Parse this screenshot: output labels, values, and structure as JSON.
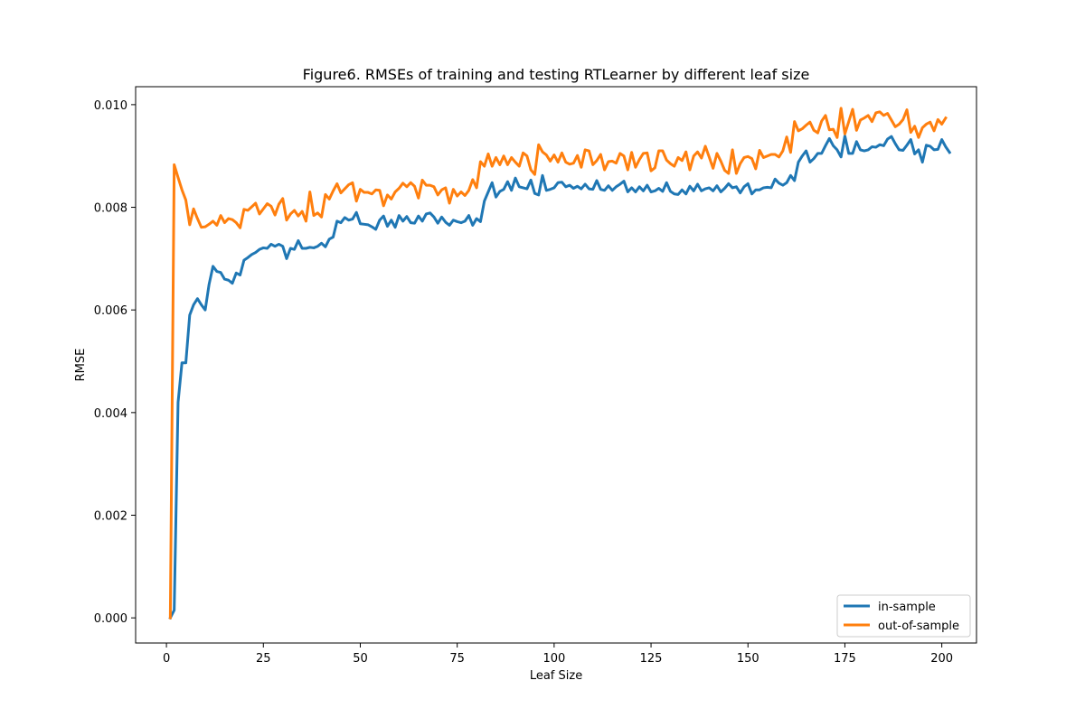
{
  "chart_data": {
    "type": "line",
    "title": "Figure6. RMSEs of training and testing RTLearner by different leaf size",
    "xlabel": "Leaf Size",
    "ylabel": "RMSE",
    "xlim": [
      -7.95,
      208.95
    ],
    "ylim": [
      -0.00049,
      0.01035
    ],
    "xticks": [
      0,
      25,
      50,
      75,
      100,
      125,
      150,
      175,
      200
    ],
    "xtick_labels": [
      "0",
      "25",
      "50",
      "75",
      "100",
      "125",
      "150",
      "175",
      "200"
    ],
    "yticks": [
      0.0,
      0.002,
      0.004,
      0.006,
      0.008,
      0.01
    ],
    "ytick_labels": [
      "0.000",
      "0.002",
      "0.004",
      "0.006",
      "0.008",
      "0.010"
    ],
    "grid": false,
    "legend_position": "lower-right",
    "series": [
      {
        "name": "in-sample",
        "color": "#1f77b4",
        "x_start": 1,
        "x_step": 1,
        "values": [
          0.0,
          0.00015,
          0.0042,
          0.00497,
          0.00497,
          0.0059,
          0.0061,
          0.00622,
          0.0061,
          0.006,
          0.0065,
          0.00685,
          0.00675,
          0.00673,
          0.0066,
          0.00658,
          0.00652,
          0.00672,
          0.00668,
          0.00697,
          0.00702,
          0.00708,
          0.00712,
          0.00718,
          0.00721,
          0.0072,
          0.00728,
          0.00724,
          0.00728,
          0.00724,
          0.007,
          0.0072,
          0.00718,
          0.00735,
          0.0072,
          0.0072,
          0.00722,
          0.00721,
          0.00724,
          0.0073,
          0.00723,
          0.00738,
          0.00742,
          0.00773,
          0.0077,
          0.0078,
          0.00775,
          0.00777,
          0.0079,
          0.00768,
          0.00767,
          0.00766,
          0.00762,
          0.00757,
          0.00775,
          0.00783,
          0.00763,
          0.00775,
          0.00761,
          0.00784,
          0.00773,
          0.00782,
          0.0077,
          0.00769,
          0.00783,
          0.00773,
          0.00787,
          0.00789,
          0.00781,
          0.00769,
          0.00781,
          0.00771,
          0.00765,
          0.00775,
          0.00772,
          0.0077,
          0.00773,
          0.00784,
          0.00765,
          0.00778,
          0.00772,
          0.00812,
          0.0083,
          0.00848,
          0.0082,
          0.00831,
          0.00835,
          0.0085,
          0.00833,
          0.00857,
          0.0084,
          0.00838,
          0.00836,
          0.00853,
          0.00827,
          0.00824,
          0.00862,
          0.00833,
          0.00835,
          0.00838,
          0.00848,
          0.00849,
          0.0084,
          0.00843,
          0.00837,
          0.00841,
          0.00836,
          0.00845,
          0.00836,
          0.00835,
          0.00852,
          0.00835,
          0.00833,
          0.00842,
          0.00833,
          0.0084,
          0.00845,
          0.00851,
          0.0083,
          0.00838,
          0.0083,
          0.0084,
          0.00832,
          0.00843,
          0.0083,
          0.00832,
          0.00837,
          0.00831,
          0.00848,
          0.00831,
          0.00826,
          0.00825,
          0.00834,
          0.00826,
          0.00841,
          0.00832,
          0.00845,
          0.00832,
          0.00836,
          0.00838,
          0.00832,
          0.00842,
          0.0083,
          0.00837,
          0.00846,
          0.00838,
          0.0084,
          0.00828,
          0.0084,
          0.00846,
          0.00826,
          0.00834,
          0.00834,
          0.00838,
          0.00839,
          0.00838,
          0.00855,
          0.00847,
          0.00843,
          0.00848,
          0.00862,
          0.00852,
          0.00888,
          0.009,
          0.0091,
          0.00888,
          0.00895,
          0.00905,
          0.00905,
          0.0092,
          0.00934,
          0.0092,
          0.00912,
          0.00898,
          0.00939,
          0.00905,
          0.00905,
          0.00928,
          0.00912,
          0.0091,
          0.00912,
          0.00918,
          0.00917,
          0.00922,
          0.0092,
          0.00933,
          0.00938,
          0.00924,
          0.00912,
          0.00911,
          0.00921,
          0.00932,
          0.00904,
          0.00912,
          0.00888,
          0.00921,
          0.00919,
          0.00912,
          0.00913,
          0.00932,
          0.00918,
          0.00907
        ]
      },
      {
        "name": "out-of-sample",
        "color": "#ff7f0e",
        "x_start": 1,
        "x_step": 1,
        "values": [
          0.0,
          0.00883,
          0.00858,
          0.00834,
          0.00814,
          0.00766,
          0.00797,
          0.00778,
          0.00761,
          0.00762,
          0.00767,
          0.00773,
          0.00765,
          0.00784,
          0.0077,
          0.00778,
          0.00776,
          0.0077,
          0.0076,
          0.00796,
          0.00794,
          0.00801,
          0.00808,
          0.00787,
          0.00797,
          0.00807,
          0.00802,
          0.00785,
          0.00806,
          0.00817,
          0.00775,
          0.00787,
          0.00794,
          0.00783,
          0.00792,
          0.00773,
          0.0083,
          0.00784,
          0.00789,
          0.00781,
          0.00825,
          0.00816,
          0.00832,
          0.00846,
          0.00828,
          0.00836,
          0.00844,
          0.00848,
          0.00812,
          0.00835,
          0.00829,
          0.00829,
          0.00826,
          0.00834,
          0.00833,
          0.00803,
          0.00824,
          0.00816,
          0.0083,
          0.00837,
          0.00847,
          0.0084,
          0.00848,
          0.00841,
          0.00818,
          0.00853,
          0.00843,
          0.00843,
          0.0084,
          0.00824,
          0.00834,
          0.00838,
          0.00808,
          0.00835,
          0.00822,
          0.0083,
          0.00823,
          0.00833,
          0.00854,
          0.00838,
          0.00889,
          0.0088,
          0.00904,
          0.0088,
          0.00897,
          0.00883,
          0.009,
          0.00883,
          0.00897,
          0.00888,
          0.0088,
          0.00906,
          0.009,
          0.00873,
          0.00864,
          0.00922,
          0.00908,
          0.00902,
          0.0089,
          0.00902,
          0.00888,
          0.00906,
          0.00888,
          0.00884,
          0.00886,
          0.00901,
          0.00878,
          0.00912,
          0.0091,
          0.00883,
          0.00891,
          0.00903,
          0.00873,
          0.00889,
          0.0089,
          0.00886,
          0.00905,
          0.009,
          0.00873,
          0.00907,
          0.00878,
          0.00893,
          0.00905,
          0.00906,
          0.00871,
          0.00877,
          0.0091,
          0.0091,
          0.00892,
          0.00885,
          0.0088,
          0.00897,
          0.00891,
          0.00908,
          0.00873,
          0.009,
          0.00908,
          0.00896,
          0.00919,
          0.00898,
          0.00876,
          0.00905,
          0.0089,
          0.00872,
          0.00866,
          0.00912,
          0.00866,
          0.00885,
          0.00897,
          0.00899,
          0.00895,
          0.00875,
          0.00911,
          0.00897,
          0.009,
          0.00903,
          0.00903,
          0.00898,
          0.0091,
          0.00937,
          0.00907,
          0.00967,
          0.00949,
          0.00953,
          0.0096,
          0.00966,
          0.0095,
          0.00945,
          0.00968,
          0.00979,
          0.00951,
          0.00952,
          0.00936,
          0.00993,
          0.00943,
          0.00967,
          0.00991,
          0.0095,
          0.0097,
          0.00974,
          0.00979,
          0.00967,
          0.00984,
          0.00986,
          0.00979,
          0.00983,
          0.0097,
          0.00957,
          0.00962,
          0.00971,
          0.0099,
          0.00946,
          0.00958,
          0.00936,
          0.00955,
          0.00962,
          0.00966,
          0.00949,
          0.00971,
          0.00962,
          0.00974
        ]
      }
    ]
  }
}
